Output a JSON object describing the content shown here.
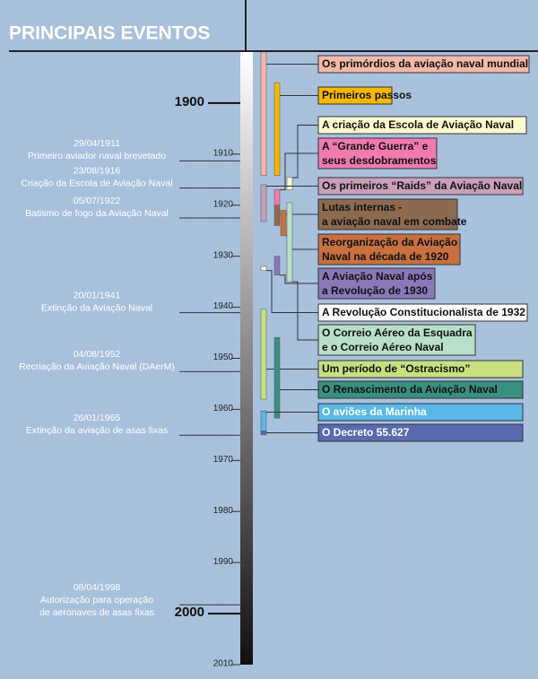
{
  "title": "PRINCIPAIS EVENTOS",
  "axis": {
    "ylim": [
      1890,
      2010
    ],
    "yticks": [
      1900,
      1910,
      1920,
      1930,
      1940,
      1950,
      1960,
      1970,
      1980,
      1990,
      2000,
      2010
    ]
  },
  "milestones": [
    {
      "date": "29/04/1911",
      "text": [
        "Primeiro aviador naval brevetado"
      ]
    },
    {
      "date": "23/08/1916",
      "text": [
        "Criação da Escola de Aviação Naval"
      ]
    },
    {
      "date": "05/07/1922",
      "text": [
        "Batismo de fogo da Aviação Naval"
      ]
    },
    {
      "date": "20/01/1941",
      "text": [
        "Extinção da Aviação Naval"
      ]
    },
    {
      "date": "04/08/1952",
      "text": [
        "Recriação da Aviação Naval (DAerM)"
      ]
    },
    {
      "date": "26/01/1965",
      "text": [
        "Extinção da aviação de asas fixas"
      ]
    },
    {
      "date": "08/04/1998",
      "text": [
        "Autorização para operação",
        "de aeronaves de asas fixas"
      ]
    }
  ],
  "events": [
    {
      "label": [
        "Os primórdios da aviação naval mundial"
      ],
      "color": "#f4b8a8",
      "span": [
        1890,
        1914.2
      ]
    },
    {
      "label": [
        "Primeiros passos"
      ],
      "color": "#f5b800",
      "span": [
        1896,
        1914.2
      ]
    },
    {
      "label": [
        "A criação da Escola de Aviação Naval"
      ],
      "color": "#fffbd0",
      "span": [
        1914.6,
        1917
      ]
    },
    {
      "label": [
        "A “Grande Guerra” e",
        "seus desdobramentos"
      ],
      "color": "#f07ab0",
      "span": [
        1917,
        1920
      ]
    },
    {
      "label": [
        "Os primeiros “Raids” da Aviação Naval"
      ],
      "color": "#c8a0b8",
      "span": [
        1916,
        1923.2
      ]
    },
    {
      "label": [
        "Lutas internas -",
        "a aviação naval em combate"
      ],
      "color": "#8c6a50",
      "span": [
        1920,
        1924
      ]
    },
    {
      "label": [
        "Reorganização da Aviação",
        "Naval na década de 1920"
      ],
      "color": "#c87040",
      "span": [
        1921,
        1926
      ]
    },
    {
      "label": [
        "A Aviação Naval após",
        "a Revolução de 1930"
      ],
      "color": "#8a78b8",
      "span": [
        1930,
        1933.7
      ]
    },
    {
      "label": [
        "A Revolução Constitucionalista de 1932"
      ],
      "color": "#ffffff",
      "span": [
        1932,
        1932.8
      ]
    },
    {
      "label": [
        "O Correio Aéreo da Esquadra",
        "e o Correio Aéreo Naval"
      ],
      "color": "#b8e0c8",
      "span": [
        1919.5,
        1935
      ]
    },
    {
      "label": [
        "Um período de “Ostracismo”"
      ],
      "color": "#c8e080",
      "span": [
        1940.4,
        1958
      ]
    },
    {
      "label": [
        "O Renascimento da Aviação Naval"
      ],
      "color": "#3a9080",
      "span": [
        1945.9,
        1961.7
      ]
    },
    {
      "label": [
        "O aviões da Marinha"
      ],
      "color": "#5ab8e8",
      "span": [
        1960.3,
        1964.5
      ]
    },
    {
      "label": [
        "O Decreto 55.627"
      ],
      "color": "#5a6ab0",
      "span": [
        1964.2,
        1965
      ]
    }
  ]
}
